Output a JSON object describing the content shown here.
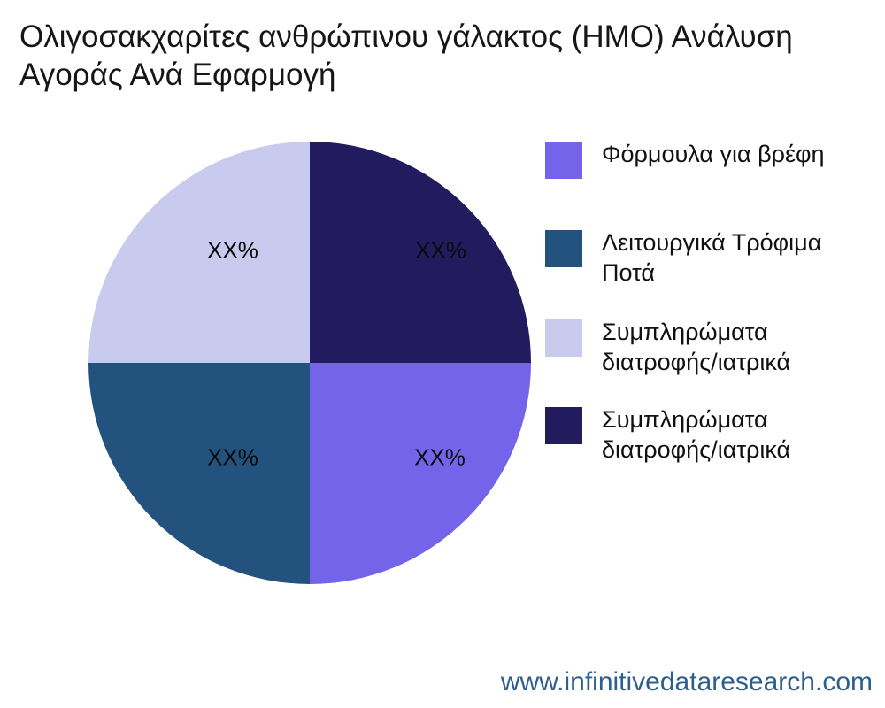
{
  "header": {
    "title": "Ολιγοσακχαρίτες ανθρώπινου γάλακτος (HMO) Ανάλυση Αγοράς Ανά Εφαρμογή"
  },
  "footer": {
    "website": "www.infinitivedataresearch.com",
    "website_color": "#2e5f8c"
  },
  "chart_data": {
    "type": "pie",
    "title": "Ολιγοσακχαρίτες ανθρώπινου γάλακτος (HMO) Ανάλυση Αγοράς Ανά Εφαρμογή",
    "unit": "percent-share",
    "slices_clockwise_from_top": [
      {
        "legend_label": "Συμπληρώματα διατροφής/ιατρικά",
        "value": 25,
        "display_label": "XX%",
        "color": "#221b5e",
        "quadrant": "top-right"
      },
      {
        "legend_label": "Φόρμουλα για βρέφη",
        "value": 25,
        "display_label": "XX%",
        "color": "#7464ea",
        "quadrant": "bottom-right"
      },
      {
        "legend_label": "Λειτουργικά Τρόφιμα Ποτά",
        "value": 25,
        "display_label": "XX%",
        "color": "#24527f",
        "quadrant": "bottom-left"
      },
      {
        "legend_label": "Συμπληρώματα διατροφής/ιατρικά",
        "value": 25,
        "display_label": "XX%",
        "color": "#c8cbee",
        "quadrant": "top-left"
      }
    ],
    "legend": {
      "position": "right",
      "items": [
        {
          "lines": [
            "Φόρμουλα για βρέφη"
          ],
          "color": "#7464ea"
        },
        {
          "lines": [
            "Λειτουργικά Τρόφιμα",
            "Ποτά"
          ],
          "color": "#24527f"
        },
        {
          "lines": [
            "Συμπληρώματα",
            "διατροφής/ιατρικά"
          ],
          "color": "#c8cbee"
        },
        {
          "lines": [
            "Συμπληρώματα",
            "διατροφής/ιατρικά"
          ],
          "color": "#221b5e"
        }
      ]
    },
    "label_text_color": "#0a0a0a",
    "background": "#ffffff"
  }
}
